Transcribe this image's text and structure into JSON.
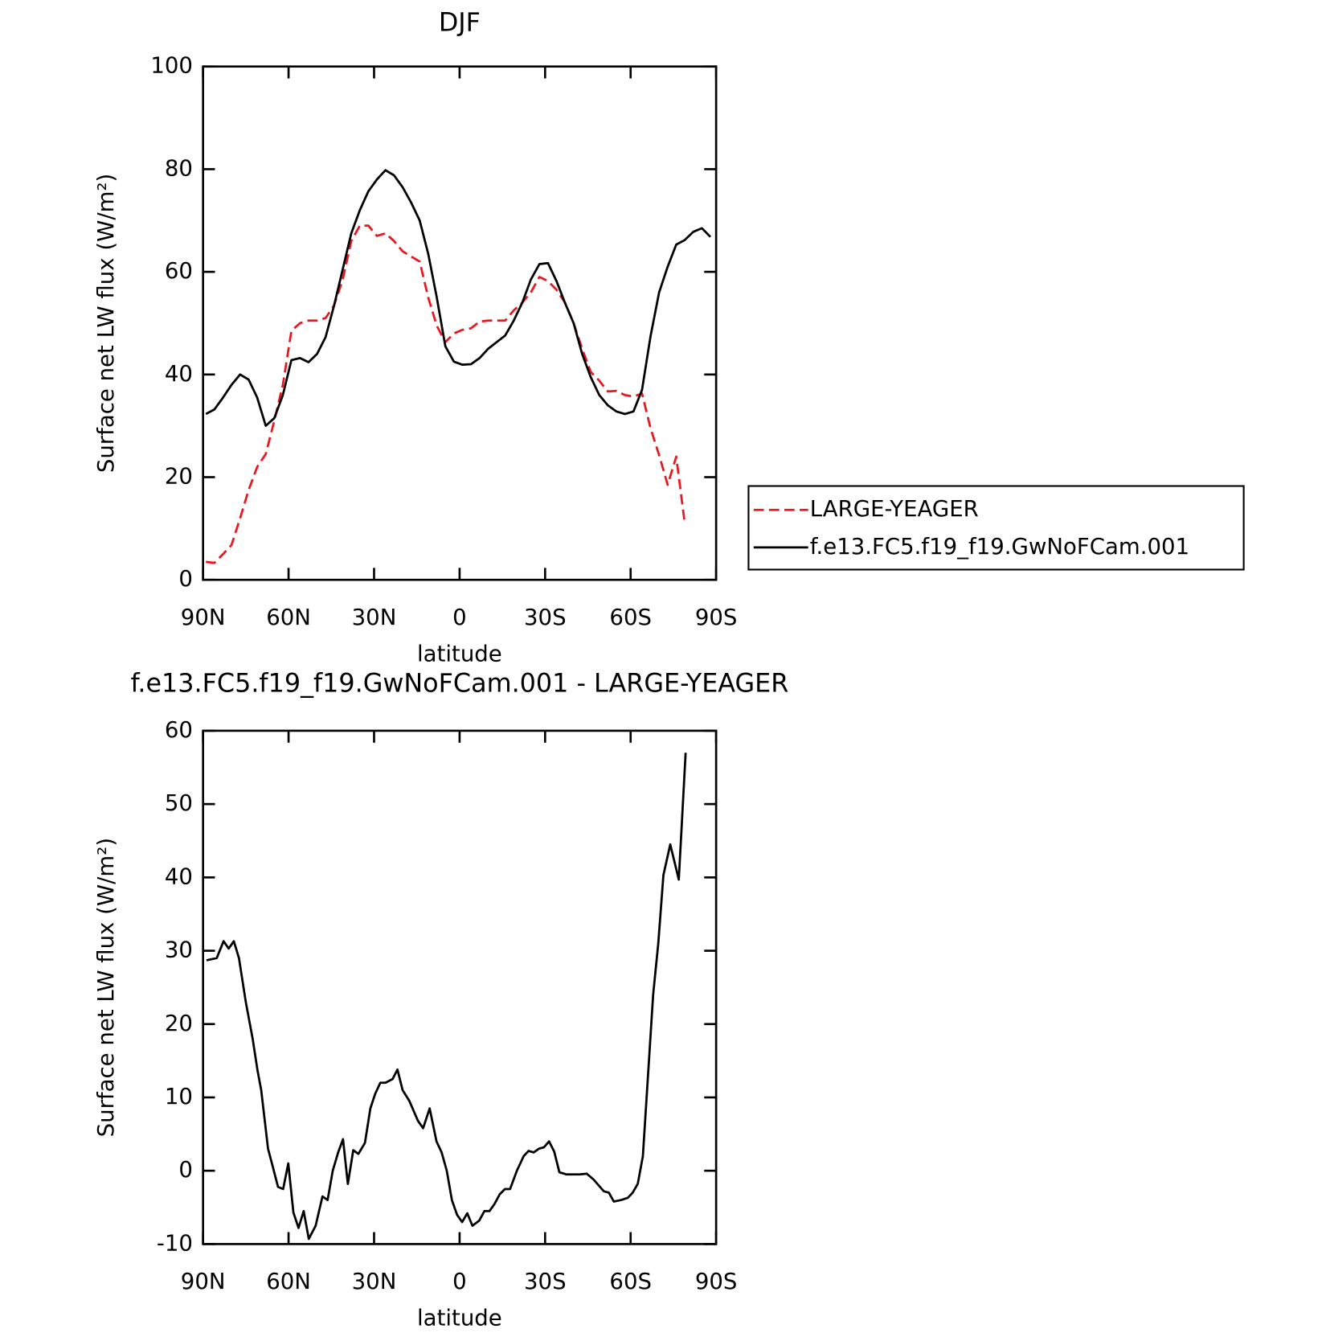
{
  "chart_data": [
    {
      "type": "line",
      "title": "DJF",
      "xlabel": "latitude",
      "ylabel": "Surface net LW flux (W/m²)",
      "xlim": [
        90,
        -90
      ],
      "xticks": [
        {
          "value": 90,
          "label": "90N"
        },
        {
          "value": 60,
          "label": "60N"
        },
        {
          "value": 30,
          "label": "30N"
        },
        0,
        {
          "value": -30,
          "label": "30S"
        },
        {
          "value": -60,
          "label": "60S"
        },
        {
          "value": -90,
          "label": "90S"
        }
      ],
      "ylim": [
        0,
        100
      ],
      "yticks": [
        0,
        20,
        40,
        60,
        80,
        100
      ],
      "legend": "right",
      "x": [
        89,
        86,
        83,
        80,
        77,
        74,
        71,
        68,
        65,
        62,
        59,
        56,
        53,
        50,
        47,
        44,
        41,
        38,
        35,
        32,
        29,
        26,
        23,
        20,
        17,
        14,
        11,
        8,
        5,
        2,
        -1,
        -4,
        -7,
        -10,
        -13,
        -16,
        -19,
        -22,
        -25,
        -28,
        -31,
        -34,
        -37,
        -40,
        -43,
        -46,
        -49,
        -52,
        -55,
        -58,
        -61,
        -64,
        -67,
        -70,
        -73,
        -76,
        -79,
        -82,
        -85,
        -88
      ],
      "series": [
        {
          "name": "LARGE-YEAGER",
          "color": "#e8181f",
          "dash": true,
          "values": [
            3.5,
            3.3,
            5,
            6.8,
            12,
            17.5,
            22,
            24.5,
            31,
            38,
            48.5,
            50,
            50.5,
            50.5,
            51,
            53.5,
            58.5,
            66,
            69,
            69,
            67,
            67.5,
            66,
            64,
            63,
            62,
            55,
            49.5,
            46.3,
            48,
            48.7,
            49,
            50.3,
            50.5,
            50.5,
            50.5,
            52.5,
            54,
            56,
            59,
            58.2,
            56.5,
            54,
            50,
            45,
            40.5,
            38.8,
            36.7,
            36.8,
            36,
            35.7,
            36.3,
            29.5,
            24.3,
            18.5,
            24,
            11,
            null,
            null,
            null
          ]
        },
        {
          "name": "f.e13.FC5.f19_f19.GwNoFCam.001",
          "color": "#000000",
          "dash": false,
          "values": [
            32.3,
            33.2,
            35.5,
            38,
            40,
            39,
            35.5,
            30,
            31.5,
            36,
            42.8,
            43.2,
            42.4,
            44,
            47.3,
            53.5,
            60.5,
            67.5,
            72,
            75.7,
            78,
            79.8,
            78.8,
            76.5,
            73.5,
            70,
            63.5,
            55,
            45.5,
            42.5,
            41.9,
            42,
            43.2,
            45,
            46.3,
            47.6,
            50.5,
            54,
            58.5,
            61.5,
            61.7,
            58.2,
            53.9,
            50,
            44,
            39.5,
            36,
            34,
            32.8,
            32.3,
            32.8,
            37,
            47.5,
            56,
            61,
            65.3,
            66.2,
            67.8,
            68.5,
            66.8
          ]
        }
      ]
    },
    {
      "type": "line",
      "title": "f.e13.FC5.f19_f19.GwNoFCam.001 - LARGE-YEAGER",
      "xlabel": "latitude",
      "ylabel": "Surface net LW flux (W/m²)",
      "xlim": [
        90,
        -90
      ],
      "xticks": [
        {
          "value": 90,
          "label": "90N"
        },
        {
          "value": 60,
          "label": "60N"
        },
        {
          "value": 30,
          "label": "30N"
        },
        0,
        {
          "value": -30,
          "label": "30S"
        },
        {
          "value": -60,
          "label": "60S"
        },
        {
          "value": -90,
          "label": "90S"
        }
      ],
      "ylim": [
        -10,
        60
      ],
      "yticks": [
        -10,
        0,
        10,
        20,
        30,
        40,
        50,
        60
      ],
      "color": "#000000",
      "x": [
        88.8,
        85.2,
        82.8,
        81,
        79.2,
        77.4,
        75,
        72.6,
        70.9,
        69.6,
        67.2,
        65.5,
        63.7,
        61.9,
        60.1,
        58.3,
        56.5,
        54.7,
        52.9,
        50.5,
        48.1,
        46.3,
        44.5,
        42.6,
        40.9,
        39.2,
        37.3,
        35.5,
        33.2,
        31.3,
        29.6,
        27.8,
        26,
        23.5,
        21.8,
        20,
        17.6,
        14.6,
        12.8,
        10.5,
        8.1,
        6.3,
        4.5,
        2.7,
        0.9,
        -0.9,
        -2.7,
        -4.5,
        -6.9,
        -8.7,
        -10.5,
        -12.3,
        -14.1,
        -15.9,
        -17.7,
        -20.1,
        -22.5,
        -24.2,
        -26,
        -27.8,
        -29.6,
        -31.4,
        -33.2,
        -35,
        -37.4,
        -39.8,
        -42.2,
        -44.6,
        -47,
        -50.6,
        -52.4,
        -54.1,
        -56.6,
        -59,
        -60.7,
        -62.5,
        -64.3,
        -66.1,
        -67.9,
        -69.7,
        -71.5,
        -73.9,
        -76.9,
        -79.3
      ],
      "values": [
        28.7,
        29,
        31.3,
        30.3,
        31.3,
        29,
        23,
        18,
        13.7,
        11,
        3,
        0.5,
        -2.2,
        -2.5,
        1,
        -5.7,
        -7.8,
        -5.5,
        -9.3,
        -7.5,
        -3.5,
        -4,
        0,
        2.5,
        4.3,
        -1.8,
        2.8,
        2.3,
        3.8,
        8.5,
        10.5,
        12,
        12,
        12.5,
        13.8,
        11,
        9.5,
        6.8,
        5.8,
        8.5,
        4,
        2.5,
        0,
        -4,
        -6,
        -7,
        -5.8,
        -7.5,
        -6.8,
        -5.5,
        -5.5,
        -4.5,
        -3.2,
        -2.5,
        -2.5,
        0,
        2,
        2.7,
        2.5,
        3,
        3.2,
        4,
        2.6,
        -0.2,
        -0.5,
        -0.5,
        -0.5,
        -0.4,
        -1.2,
        -2.8,
        -3,
        -4.2,
        -4,
        -3.7,
        -3,
        -1.8,
        2,
        13,
        24,
        31,
        40.3,
        44.5,
        39.7,
        57
      ]
    }
  ]
}
